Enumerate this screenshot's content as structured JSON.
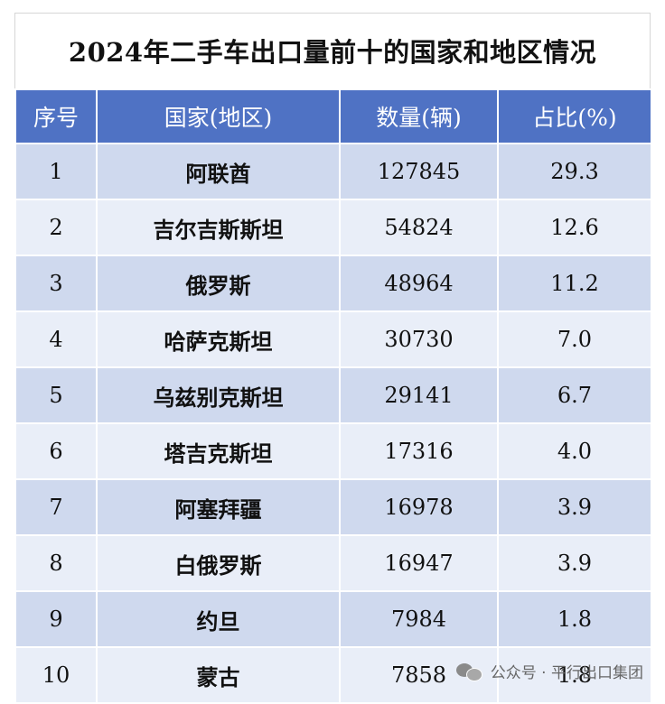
{
  "title": "2024年二手车出口量前十的国家和地区情况",
  "headers": [
    "序号",
    "国家(地区)",
    "数量(辆)",
    "占比(%)"
  ],
  "rows": [
    {
      "rank": "1",
      "country": "阿联酋",
      "count": "127845",
      "share": "29.3"
    },
    {
      "rank": "2",
      "country": "吉尔吉斯斯坦",
      "count": "54824",
      "share": "12.6"
    },
    {
      "rank": "3",
      "country": "俄罗斯",
      "count": "48964",
      "share": "11.2"
    },
    {
      "rank": "4",
      "country": "哈萨克斯坦",
      "count": "30730",
      "share": "7.0"
    },
    {
      "rank": "5",
      "country": "乌兹别克斯坦",
      "count": "29141",
      "share": "6.7"
    },
    {
      "rank": "6",
      "country": "塔吉克斯坦",
      "count": "17316",
      "share": "4.0"
    },
    {
      "rank": "7",
      "country": "阿塞拜疆",
      "count": "16978",
      "share": "3.9"
    },
    {
      "rank": "8",
      "country": "白俄罗斯",
      "count": "16947",
      "share": "3.9"
    },
    {
      "rank": "9",
      "country": "约旦",
      "count": "7984",
      "share": "1.8"
    },
    {
      "rank": "10",
      "country": "蒙古",
      "count": "7858",
      "share": "1.8"
    }
  ],
  "watermark": {
    "text": "公众号 · 平行出口集团",
    "icon": "wechat-icon"
  },
  "colors": {
    "header_bg": "#4f72c4",
    "row_odd": "#cfd9ee",
    "row_even": "#e9eef8"
  }
}
